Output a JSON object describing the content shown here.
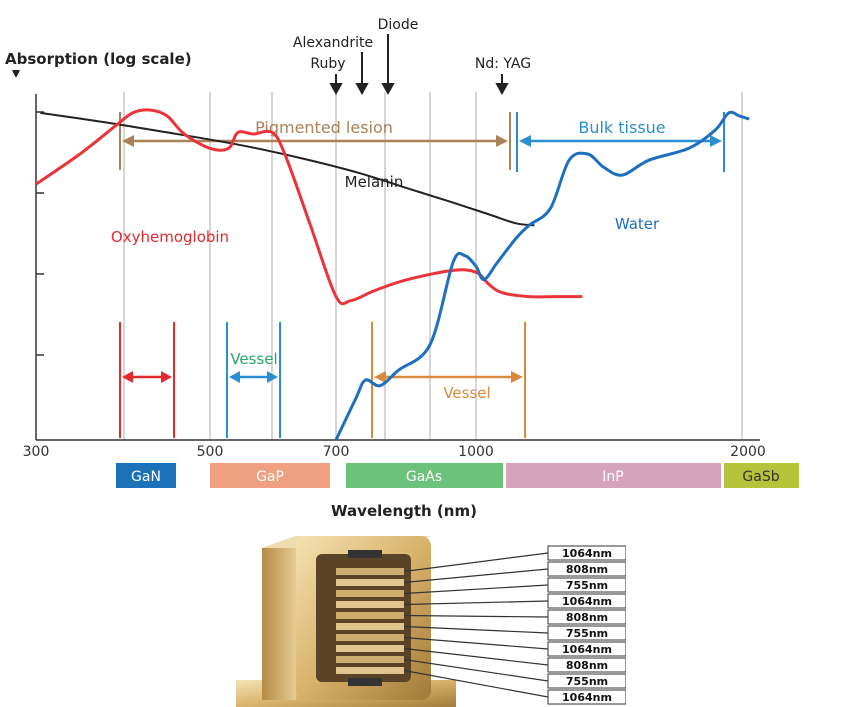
{
  "chart_data": {
    "type": "line",
    "ylabel": "Absorption (log scale)",
    "xlabel": "Wavelength (nm)",
    "y_scale": "log",
    "grid": true,
    "x_ticks": [
      "300",
      "500",
      "700",
      "1000",
      "2000"
    ],
    "xlim": [
      300,
      2000
    ],
    "series": [
      {
        "name": "Melanin",
        "color": "#222222",
        "points": [
          [
            305,
            1.0
          ],
          [
            380,
            0.85
          ],
          [
            450,
            0.72
          ],
          [
            550,
            0.58
          ],
          [
            650,
            0.46
          ],
          [
            750,
            0.36
          ],
          [
            850,
            0.28
          ],
          [
            950,
            0.22
          ],
          [
            1050,
            0.18
          ],
          [
            1150,
            0.155
          ],
          [
            1220,
            0.15
          ]
        ]
      },
      {
        "name": "Oxyhemoglobin",
        "color": "#e8343a",
        "points": [
          [
            300,
            0.3
          ],
          [
            350,
            0.5
          ],
          [
            390,
            0.8
          ],
          [
            410,
            1.0
          ],
          [
            430,
            1.05
          ],
          [
            450,
            0.95
          ],
          [
            470,
            0.7
          ],
          [
            500,
            0.55
          ],
          [
            530,
            0.55
          ],
          [
            545,
            0.72
          ],
          [
            570,
            0.7
          ],
          [
            600,
            0.72
          ],
          [
            620,
            0.5
          ],
          [
            660,
            0.15
          ],
          [
            700,
            0.045
          ],
          [
            730,
            0.042
          ],
          [
            780,
            0.05
          ],
          [
            850,
            0.06
          ],
          [
            950,
            0.07
          ],
          [
            1000,
            0.068
          ],
          [
            1050,
            0.055
          ],
          [
            1100,
            0.048
          ],
          [
            1200,
            0.045
          ],
          [
            1300,
            0.045
          ],
          [
            1400,
            0.045
          ]
        ]
      },
      {
        "name": "Water",
        "color": "#1f6fc0",
        "points": [
          [
            700,
            0.004
          ],
          [
            740,
            0.008
          ],
          [
            760,
            0.011
          ],
          [
            790,
            0.01
          ],
          [
            830,
            0.013
          ],
          [
            900,
            0.02
          ],
          [
            950,
            0.08
          ],
          [
            975,
            0.09
          ],
          [
            1000,
            0.075
          ],
          [
            1030,
            0.06
          ],
          [
            1080,
            0.08
          ],
          [
            1150,
            0.12
          ],
          [
            1200,
            0.15
          ],
          [
            1280,
            0.2
          ],
          [
            1350,
            0.45
          ],
          [
            1420,
            0.5
          ],
          [
            1480,
            0.4
          ],
          [
            1550,
            0.35
          ],
          [
            1650,
            0.45
          ],
          [
            1800,
            0.55
          ],
          [
            1900,
            0.75
          ],
          [
            1950,
            1.0
          ],
          [
            1990,
            0.95
          ],
          [
            2020,
            0.9
          ]
        ]
      }
    ],
    "annotations": {
      "lasers": [
        "Alexandrite",
        "Ruby",
        "Diode",
        "Nd: YAG"
      ],
      "pigmented_lesion": "Pigmented lesion",
      "bulk_tissue": "Bulk tissue",
      "vessel_green": "Vessel",
      "vessel_orange": "Vessel",
      "water": "Water",
      "melanin": "Melanin",
      "oxyhemoglobin": "Oxyhemoglobin"
    },
    "materials": [
      {
        "name": "GaN",
        "color": "#1b72b9"
      },
      {
        "name": "GaP",
        "color": "#f0a07f"
      },
      {
        "name": "GaAs",
        "color": "#6cc27a"
      },
      {
        "name": "InP",
        "color": "#d6a3bd"
      },
      {
        "name": "GaSb",
        "color": "#b5c43b"
      }
    ]
  },
  "module_labels": [
    "1064nm",
    "808nm",
    "755nm",
    "1064nm",
    "808nm",
    "755nm",
    "1064nm",
    "808nm",
    "755nm",
    "1064nm"
  ]
}
